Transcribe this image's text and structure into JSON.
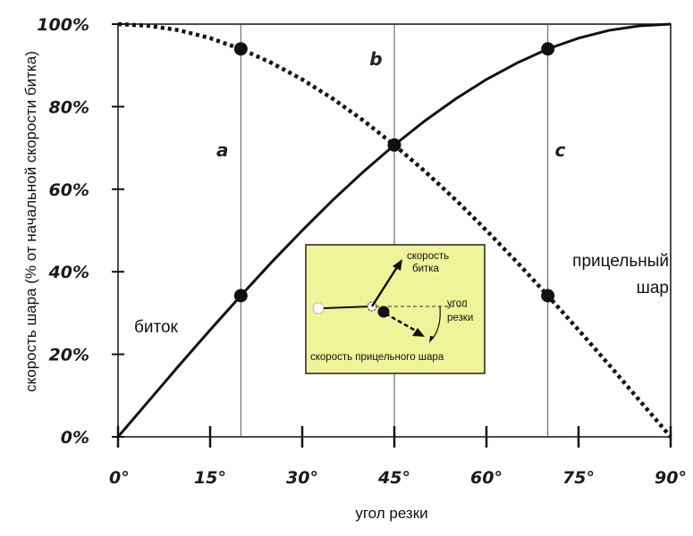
{
  "chart_data": {
    "type": "line",
    "title": "",
    "xlabel": "угол резки",
    "ylabel": "скорость шара (% от начальной скорости битка)",
    "xlim": [
      0,
      90
    ],
    "ylim": [
      0,
      100
    ],
    "x_ticks": [
      0,
      15,
      30,
      45,
      60,
      75,
      90
    ],
    "x_tick_labels": [
      "0°",
      "15°",
      "30°",
      "45°",
      "60°",
      "75°",
      "90°"
    ],
    "y_ticks": [
      0,
      20,
      40,
      60,
      80,
      100
    ],
    "y_tick_labels": [
      "0%",
      "20%",
      "40%",
      "60%",
      "80%",
      "100%"
    ],
    "reference_lines_x": [
      20,
      45,
      70
    ],
    "region_labels": [
      {
        "text": "a",
        "x": 17,
        "y": 68
      },
      {
        "text": "b",
        "x": 42,
        "y": 90
      },
      {
        "text": "c",
        "x": 72,
        "y": 68
      }
    ],
    "series": [
      {
        "name": "биток",
        "style": "solid",
        "x": [
          0,
          5,
          10,
          15,
          20,
          25,
          30,
          35,
          40,
          45,
          50,
          55,
          60,
          65,
          70,
          75,
          80,
          85,
          90
        ],
        "values": [
          0,
          8.7,
          17.4,
          25.9,
          34.2,
          42.3,
          50,
          57.4,
          64.3,
          70.7,
          76.6,
          81.9,
          86.6,
          90.6,
          94,
          96.6,
          98.5,
          99.6,
          100
        ],
        "markers": [
          {
            "x": 20,
            "y": 34.2
          },
          {
            "x": 45,
            "y": 70.7
          },
          {
            "x": 70,
            "y": 94
          }
        ]
      },
      {
        "name": "прицельный шар",
        "style": "dotted",
        "x": [
          0,
          5,
          10,
          15,
          20,
          25,
          30,
          35,
          40,
          45,
          50,
          55,
          60,
          65,
          70,
          75,
          80,
          85,
          90
        ],
        "values": [
          100,
          99.6,
          98.5,
          96.6,
          94,
          90.6,
          86.6,
          81.9,
          76.6,
          70.7,
          64.3,
          57.4,
          50,
          42.3,
          34.2,
          25.9,
          17.4,
          8.7,
          0
        ],
        "markers": [
          {
            "x": 20,
            "y": 94
          },
          {
            "x": 70,
            "y": 34.2
          }
        ]
      }
    ],
    "series_labels": {
      "cue": "биток",
      "object_line1": "прицельный",
      "object_line2": "шар"
    },
    "inset": {
      "background": "#eef49a",
      "cue_velocity": "скорость битка",
      "cue_velocity_line1": "скорость",
      "cue_velocity_line2": "битка",
      "cut_angle_line1": "угол",
      "cut_angle_line2": "резки",
      "object_velocity": "скорость прицельного шара"
    }
  }
}
